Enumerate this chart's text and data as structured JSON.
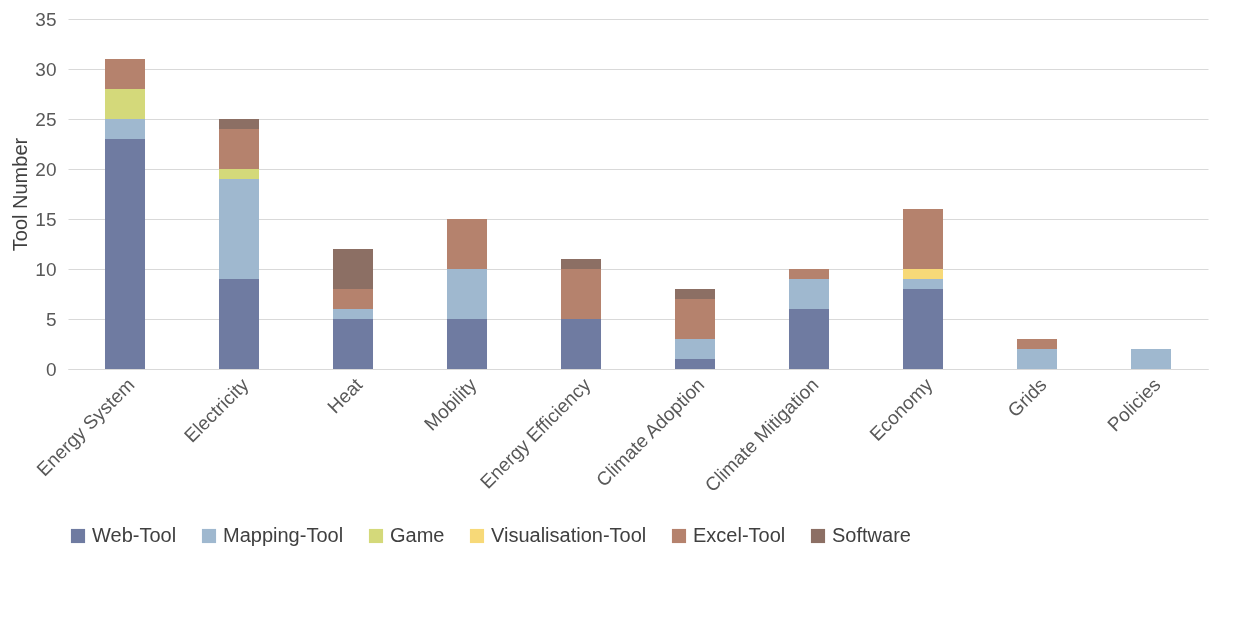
{
  "chart_data": {
    "type": "bar",
    "stacked": true,
    "ylabel": "Tool Number",
    "categories": [
      "Energy System",
      "Electricity",
      "Heat",
      "Mobility",
      "Energy Efficiency",
      "Climate Adoption",
      "Climate Mitigation",
      "Economy",
      "Grids",
      "Policies"
    ],
    "series": [
      {
        "name": "Web-Tool",
        "color": "#6f7ba1",
        "values": [
          23,
          9,
          5,
          5,
          5,
          1,
          6,
          8,
          0,
          0
        ]
      },
      {
        "name": "Mapping-Tool",
        "color": "#9fb8cf",
        "values": [
          2,
          10,
          1,
          5,
          0,
          2,
          3,
          1,
          2,
          2
        ]
      },
      {
        "name": "Game",
        "color": "#d4d97a",
        "values": [
          3,
          1,
          0,
          0,
          0,
          0,
          0,
          0,
          0,
          0
        ]
      },
      {
        "name": "Visualisation-Tool",
        "color": "#f7d978",
        "values": [
          0,
          0,
          0,
          0,
          0,
          0,
          0,
          1,
          0,
          0
        ]
      },
      {
        "name": "Excel-Tool",
        "color": "#b5826d",
        "values": [
          3,
          4,
          2,
          5,
          5,
          4,
          1,
          6,
          1,
          0
        ]
      },
      {
        "name": "Software",
        "color": "#8c6f64",
        "values": [
          0,
          1,
          4,
          0,
          1,
          1,
          0,
          0,
          0,
          0
        ]
      }
    ],
    "ylim": [
      0,
      35
    ],
    "yticks": [
      0,
      5,
      10,
      15,
      20,
      25,
      30,
      35
    ],
    "grid": "y",
    "legend": "bottom"
  }
}
